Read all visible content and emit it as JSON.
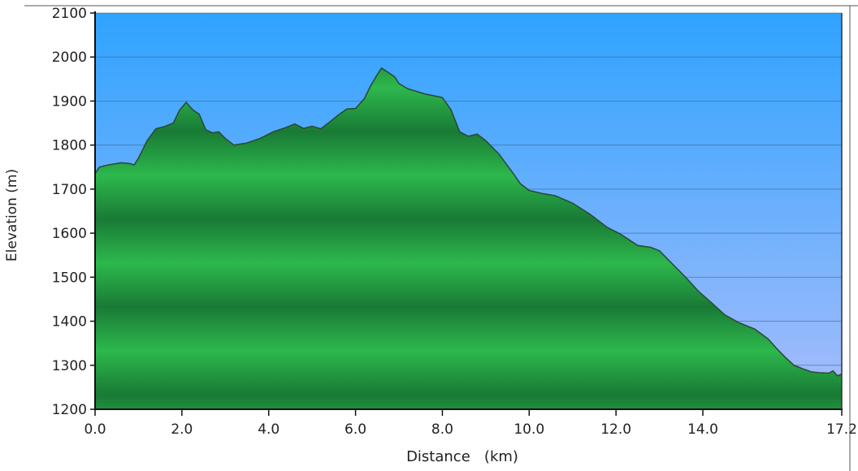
{
  "chart_data": {
    "type": "area",
    "title": "",
    "xlabel": "Distance   (km)",
    "ylabel": "Elevation (m)",
    "xlim": [
      0,
      17.2
    ],
    "ylim": [
      1200,
      2100
    ],
    "x_ticks": [
      0,
      2,
      4,
      6,
      8,
      10,
      12,
      14,
      17.2
    ],
    "x_tick_labels": [
      "0.0",
      "2.0",
      "4.0",
      "6.0",
      "8.0",
      "10.0",
      "12.0",
      "14.0",
      "17.2"
    ],
    "y_ticks": [
      1200,
      1300,
      1400,
      1500,
      1600,
      1700,
      1800,
      1900,
      2000,
      2100
    ],
    "y_tick_labels": [
      "1200",
      "1300",
      "1400",
      "1500",
      "1600",
      "1700",
      "1800",
      "1900",
      "2000",
      "2100"
    ],
    "grid": true,
    "legend": "none",
    "colors": {
      "sky_top": "#2ea3ff",
      "sky_bottom": "#a9bdfb",
      "fill_light": "#2db84c",
      "fill_dark": "#197a35",
      "outline": "#2d4a3a",
      "grid": "#3a5f80"
    },
    "series": [
      {
        "x": [
          0.0,
          0.1,
          0.3,
          0.6,
          0.8,
          0.9,
          1.0,
          1.2,
          1.4,
          1.6,
          1.8,
          1.95,
          2.1,
          2.25,
          2.4,
          2.55,
          2.7,
          2.85,
          3.0,
          3.2,
          3.5,
          3.8,
          4.1,
          4.4,
          4.6,
          4.8,
          5.0,
          5.2,
          5.4,
          5.6,
          5.8,
          6.0,
          6.2,
          6.35,
          6.5,
          6.6,
          6.75,
          6.9,
          7.0,
          7.2,
          7.4,
          7.6,
          7.8,
          8.0,
          8.2,
          8.4,
          8.6,
          8.8,
          9.0,
          9.3,
          9.6,
          9.8,
          10.0,
          10.3,
          10.6,
          11.0,
          11.4,
          11.8,
          12.1,
          12.5,
          12.8,
          13.0,
          13.3,
          13.6,
          13.9,
          14.2,
          14.5,
          14.8,
          15.0,
          15.2,
          15.5,
          15.7,
          15.9,
          16.1,
          16.3,
          16.5,
          16.7,
          16.9,
          17.0,
          17.1,
          17.2
        ],
        "y": [
          1735,
          1750,
          1755,
          1760,
          1758,
          1755,
          1770,
          1810,
          1837,
          1842,
          1850,
          1880,
          1897,
          1880,
          1870,
          1835,
          1828,
          1830,
          1815,
          1800,
          1805,
          1815,
          1830,
          1840,
          1848,
          1838,
          1843,
          1837,
          1852,
          1868,
          1882,
          1883,
          1905,
          1935,
          1960,
          1975,
          1965,
          1955,
          1940,
          1928,
          1922,
          1916,
          1912,
          1908,
          1880,
          1830,
          1820,
          1825,
          1810,
          1780,
          1740,
          1712,
          1697,
          1690,
          1685,
          1668,
          1643,
          1613,
          1598,
          1572,
          1568,
          1560,
          1530,
          1500,
          1468,
          1442,
          1415,
          1398,
          1390,
          1382,
          1360,
          1338,
          1318,
          1300,
          1292,
          1285,
          1283,
          1282,
          1287,
          1276,
          1280
        ]
      }
    ]
  }
}
